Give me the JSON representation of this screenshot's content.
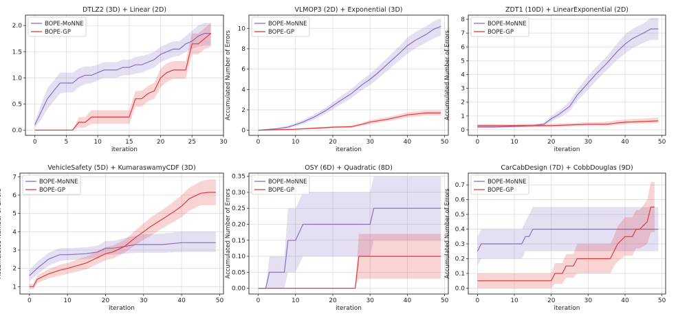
{
  "chart_data": [
    {
      "type": "line",
      "title": "DTLZ2 (3D) + Linear (2D)",
      "xlabel": "iteration",
      "ylabel": "",
      "xlim": [
        -1.5,
        30
      ],
      "ylim": [
        -0.1,
        2.2
      ],
      "xticks": [
        0,
        5,
        10,
        15,
        20,
        25,
        30
      ],
      "yticks": [
        0.0,
        0.5,
        1.0,
        1.5,
        2.0
      ],
      "ytick_labels": [
        "0.0",
        "0.5",
        "1.0",
        "1.5",
        "2.0"
      ],
      "grid": true,
      "legend": "top-left",
      "series": [
        {
          "name": "BOPE-MoNNE",
          "color": "#8a6cc4",
          "x": [
            0,
            1,
            2,
            3,
            4,
            5,
            6,
            7,
            8,
            9,
            10,
            11,
            12,
            13,
            14,
            15,
            16,
            17,
            18,
            19,
            20,
            21,
            22,
            23,
            24,
            25,
            26,
            27,
            28
          ],
          "y": [
            0.1,
            0.35,
            0.6,
            0.75,
            0.9,
            0.9,
            0.9,
            1.0,
            1.05,
            1.05,
            1.1,
            1.15,
            1.15,
            1.15,
            1.2,
            1.2,
            1.25,
            1.25,
            1.3,
            1.35,
            1.45,
            1.5,
            1.55,
            1.55,
            1.65,
            1.7,
            1.8,
            1.85,
            1.85
          ],
          "lower": [
            0.05,
            0.2,
            0.4,
            0.55,
            0.7,
            0.72,
            0.72,
            0.82,
            0.88,
            0.9,
            0.95,
            1.0,
            1.0,
            1.0,
            1.05,
            1.05,
            1.08,
            1.1,
            1.15,
            1.2,
            1.3,
            1.35,
            1.4,
            1.42,
            1.5,
            1.55,
            1.6,
            1.62,
            1.62
          ],
          "upper": [
            0.15,
            0.5,
            0.8,
            0.95,
            1.1,
            1.1,
            1.1,
            1.18,
            1.22,
            1.22,
            1.25,
            1.3,
            1.3,
            1.3,
            1.35,
            1.35,
            1.4,
            1.42,
            1.45,
            1.5,
            1.6,
            1.65,
            1.7,
            1.7,
            1.8,
            1.9,
            2.0,
            2.05,
            2.05
          ]
        },
        {
          "name": "BOPE-GP",
          "color": "#dd3b3b",
          "x": [
            0,
            1,
            2,
            3,
            4,
            5,
            6,
            7,
            8,
            9,
            10,
            11,
            12,
            13,
            14,
            15,
            16,
            17,
            18,
            19,
            20,
            21,
            22,
            23,
            24,
            25,
            26,
            27,
            28
          ],
          "y": [
            0.0,
            0.0,
            0.0,
            0.0,
            0.0,
            0.0,
            0.0,
            0.15,
            0.15,
            0.25,
            0.25,
            0.25,
            0.25,
            0.25,
            0.25,
            0.25,
            0.6,
            0.6,
            0.7,
            0.75,
            1.0,
            1.1,
            1.15,
            1.15,
            1.15,
            1.65,
            1.65,
            1.75,
            1.85
          ],
          "lower": [
            0.0,
            0.0,
            0.0,
            0.0,
            0.0,
            0.0,
            0.0,
            0.05,
            0.05,
            0.12,
            0.12,
            0.12,
            0.12,
            0.12,
            0.12,
            0.12,
            0.45,
            0.45,
            0.55,
            0.6,
            0.82,
            0.92,
            0.98,
            0.98,
            0.98,
            1.45,
            1.45,
            1.55,
            1.6
          ],
          "upper": [
            0.0,
            0.0,
            0.0,
            0.0,
            0.0,
            0.0,
            0.0,
            0.25,
            0.25,
            0.38,
            0.38,
            0.38,
            0.38,
            0.38,
            0.38,
            0.38,
            0.75,
            0.75,
            0.85,
            0.9,
            1.18,
            1.28,
            1.32,
            1.32,
            1.32,
            1.85,
            1.85,
            1.95,
            2.05
          ]
        }
      ]
    },
    {
      "type": "line",
      "title": "VLMOP3 (2D) + Exponential (3D)",
      "xlabel": "iteration",
      "ylabel": "Accumulated Number of Errors",
      "xlim": [
        -2.5,
        51
      ],
      "ylim": [
        -0.5,
        11.3
      ],
      "xticks": [
        0,
        10,
        20,
        30,
        40,
        50
      ],
      "yticks": [
        0,
        2,
        4,
        6,
        8,
        10
      ],
      "ytick_labels": [
        "0",
        "2",
        "4",
        "6",
        "8",
        "10"
      ],
      "grid": true,
      "legend": "top-left",
      "series": [
        {
          "name": "BOPE-MoNNE",
          "color": "#8a6cc4",
          "x": [
            0,
            5,
            8,
            10,
            12,
            15,
            18,
            20,
            22,
            25,
            28,
            30,
            32,
            35,
            38,
            40,
            42,
            45,
            47,
            49
          ],
          "y": [
            0.0,
            0.15,
            0.3,
            0.55,
            0.8,
            1.3,
            1.9,
            2.4,
            2.9,
            3.6,
            4.5,
            5.0,
            5.6,
            6.6,
            7.6,
            8.3,
            8.8,
            9.4,
            9.9,
            10.2
          ],
          "lower": [
            0.0,
            0.08,
            0.18,
            0.4,
            0.6,
            1.05,
            1.6,
            2.05,
            2.5,
            3.15,
            4.0,
            4.45,
            5.0,
            5.95,
            6.9,
            7.5,
            8.0,
            8.6,
            9.0,
            9.3
          ],
          "upper": [
            0.0,
            0.22,
            0.45,
            0.7,
            1.0,
            1.55,
            2.2,
            2.75,
            3.3,
            4.05,
            5.0,
            5.55,
            6.2,
            7.25,
            8.3,
            9.1,
            9.6,
            10.2,
            10.7,
            11.0
          ]
        },
        {
          "name": "BOPE-GP",
          "color": "#dd3b3b",
          "x": [
            0,
            5,
            10,
            15,
            18,
            20,
            25,
            28,
            30,
            35,
            40,
            45,
            49
          ],
          "y": [
            0.0,
            0.05,
            0.1,
            0.2,
            0.25,
            0.3,
            0.35,
            0.6,
            0.8,
            1.1,
            1.5,
            1.7,
            1.7
          ],
          "lower": [
            0.0,
            0.0,
            0.05,
            0.12,
            0.15,
            0.2,
            0.25,
            0.45,
            0.6,
            0.9,
            1.25,
            1.45,
            1.45
          ],
          "upper": [
            0.0,
            0.1,
            0.15,
            0.28,
            0.35,
            0.4,
            0.45,
            0.75,
            1.0,
            1.3,
            1.75,
            1.95,
            1.95
          ]
        }
      ]
    },
    {
      "type": "line",
      "title": "ZDT1 (10D) + LinearExponential (2D)",
      "xlabel": "iteration",
      "ylabel": "Accumulated Number of Errors",
      "xlim": [
        -2.5,
        51
      ],
      "ylim": [
        -0.4,
        8.3
      ],
      "xticks": [
        0,
        10,
        20,
        30,
        40,
        50
      ],
      "yticks": [
        0,
        1,
        2,
        3,
        4,
        5,
        6,
        7,
        8
      ],
      "ytick_labels": [
        "0",
        "1",
        "2",
        "3",
        "4",
        "5",
        "6",
        "7",
        "8"
      ],
      "grid": true,
      "legend": "top-left",
      "series": [
        {
          "name": "BOPE-MoNNE",
          "color": "#8a6cc4",
          "x": [
            0,
            5,
            10,
            15,
            18,
            20,
            22,
            25,
            27,
            30,
            32,
            35,
            38,
            40,
            42,
            45,
            47,
            49
          ],
          "y": [
            0.2,
            0.2,
            0.25,
            0.3,
            0.4,
            0.8,
            1.1,
            1.7,
            2.5,
            3.4,
            4.0,
            4.8,
            5.7,
            6.2,
            6.6,
            7.0,
            7.3,
            7.3
          ],
          "lower": [
            0.12,
            0.12,
            0.15,
            0.2,
            0.28,
            0.6,
            0.85,
            1.35,
            2.1,
            2.9,
            3.5,
            4.3,
            5.1,
            5.5,
            5.9,
            6.3,
            6.5,
            6.5
          ],
          "upper": [
            0.28,
            0.28,
            0.35,
            0.4,
            0.52,
            1.0,
            1.35,
            2.05,
            2.9,
            3.9,
            4.5,
            5.3,
            6.3,
            6.9,
            7.3,
            7.7,
            8.1,
            8.1
          ]
        },
        {
          "name": "BOPE-GP",
          "color": "#dd3b3b",
          "x": [
            0,
            5,
            10,
            15,
            20,
            25,
            30,
            35,
            38,
            40,
            45,
            49
          ],
          "y": [
            0.3,
            0.3,
            0.3,
            0.3,
            0.3,
            0.35,
            0.4,
            0.4,
            0.5,
            0.55,
            0.6,
            0.65
          ],
          "lower": [
            0.2,
            0.2,
            0.2,
            0.2,
            0.2,
            0.25,
            0.28,
            0.28,
            0.35,
            0.4,
            0.45,
            0.5
          ],
          "upper": [
            0.4,
            0.4,
            0.4,
            0.4,
            0.42,
            0.48,
            0.55,
            0.58,
            0.7,
            0.75,
            0.82,
            0.88
          ]
        }
      ]
    },
    {
      "type": "line",
      "title": "VehicleSafety (5D) + KumaraswamyCDF (3D)",
      "xlabel": "iteration",
      "ylabel": "Accumulated Number of Errors",
      "xlim": [
        -2.5,
        51
      ],
      "ylim": [
        0.6,
        7.2
      ],
      "xticks": [
        0,
        10,
        20,
        30,
        40,
        50
      ],
      "yticks": [
        1,
        2,
        3,
        4,
        5,
        6,
        7
      ],
      "ytick_labels": [
        "1",
        "2",
        "3",
        "4",
        "5",
        "6",
        "7"
      ],
      "grid": true,
      "legend": "top-left",
      "series": [
        {
          "name": "BOPE-MoNNE",
          "color": "#8a6cc4",
          "x": [
            0,
            2,
            5,
            8,
            10,
            15,
            18,
            20,
            22,
            25,
            28,
            30,
            35,
            40,
            45,
            49
          ],
          "y": [
            1.6,
            2.0,
            2.5,
            2.75,
            2.75,
            2.8,
            2.9,
            3.1,
            3.1,
            3.2,
            3.3,
            3.3,
            3.3,
            3.4,
            3.4,
            3.4
          ],
          "lower": [
            1.3,
            1.65,
            2.15,
            2.4,
            2.45,
            2.5,
            2.6,
            2.75,
            2.75,
            2.8,
            2.85,
            2.85,
            2.85,
            2.9,
            2.9,
            2.9
          ],
          "upper": [
            1.9,
            2.35,
            2.85,
            3.1,
            3.1,
            3.15,
            3.25,
            3.5,
            3.5,
            3.65,
            3.8,
            3.85,
            3.9,
            4.0,
            4.0,
            4.0
          ]
        },
        {
          "name": "BOPE-GP",
          "color": "#dd3b3b",
          "x": [
            0,
            1,
            2,
            5,
            8,
            10,
            15,
            18,
            20,
            22,
            25,
            28,
            30,
            32,
            35,
            38,
            40,
            42,
            45,
            47,
            49
          ],
          "y": [
            1.0,
            1.0,
            1.4,
            1.7,
            1.9,
            2.0,
            2.3,
            2.6,
            2.8,
            2.9,
            3.2,
            3.7,
            4.0,
            4.3,
            4.7,
            5.1,
            5.4,
            5.8,
            6.1,
            6.15,
            6.15
          ],
          "lower": [
            0.85,
            0.85,
            1.2,
            1.45,
            1.6,
            1.7,
            1.95,
            2.25,
            2.45,
            2.55,
            2.85,
            3.3,
            3.55,
            3.8,
            4.2,
            4.55,
            4.8,
            5.15,
            5.45,
            5.45,
            5.45
          ],
          "upper": [
            1.15,
            1.15,
            1.6,
            1.95,
            2.2,
            2.3,
            2.65,
            2.95,
            3.15,
            3.25,
            3.55,
            4.1,
            4.45,
            4.8,
            5.2,
            5.65,
            6.0,
            6.4,
            6.75,
            6.85,
            6.85
          ]
        }
      ]
    },
    {
      "type": "line",
      "title": "OSY (6D) + Quadratic (8D)",
      "xlabel": "iteration",
      "ylabel": "Accumulated Number of Errors",
      "xlim": [
        -2.5,
        51
      ],
      "ylim": [
        -0.018,
        0.36
      ],
      "xticks": [
        0,
        10,
        20,
        30,
        40,
        50
      ],
      "yticks": [
        0.0,
        0.05,
        0.1,
        0.15,
        0.2,
        0.25,
        0.3,
        0.35
      ],
      "ytick_labels": [
        "0.00",
        "0.05",
        "0.10",
        "0.15",
        "0.20",
        "0.25",
        "0.30",
        "0.35"
      ],
      "grid": true,
      "legend": "top-left",
      "series": [
        {
          "name": "BOPE-MoNNE",
          "color": "#8a6cc4",
          "x": [
            0,
            2,
            3,
            7,
            8,
            10,
            12,
            30,
            31,
            49
          ],
          "y": [
            0.0,
            0.0,
            0.05,
            0.05,
            0.15,
            0.15,
            0.2,
            0.2,
            0.25,
            0.25
          ],
          "lower": [
            0.0,
            0.0,
            0.0,
            0.0,
            0.05,
            0.05,
            0.1,
            0.1,
            0.15,
            0.15
          ],
          "upper": [
            0.0,
            0.0,
            0.1,
            0.1,
            0.25,
            0.25,
            0.3,
            0.3,
            0.35,
            0.35
          ]
        },
        {
          "name": "BOPE-GP",
          "color": "#dd3b3b",
          "x": [
            0,
            26,
            27,
            49
          ],
          "y": [
            0.0,
            0.0,
            0.1,
            0.1
          ],
          "lower": [
            0.0,
            0.0,
            0.03,
            0.03
          ],
          "upper": [
            0.0,
            0.0,
            0.17,
            0.17
          ]
        }
      ]
    },
    {
      "type": "line",
      "title": "CarCabDesign (7D) + CobbDouglas (9D)",
      "xlabel": "iteration",
      "ylabel": "Accumulated Number of Errors",
      "xlim": [
        -2.5,
        51
      ],
      "ylim": [
        -0.04,
        0.78
      ],
      "xticks": [
        0,
        10,
        20,
        30,
        40,
        50
      ],
      "yticks": [
        0.0,
        0.1,
        0.2,
        0.3,
        0.4,
        0.5,
        0.6,
        0.7
      ],
      "ytick_labels": [
        "0.0",
        "0.1",
        "0.2",
        "0.3",
        "0.4",
        "0.5",
        "0.6",
        "0.7"
      ],
      "grid": true,
      "legend": "top-left",
      "series": [
        {
          "name": "BOPE-MoNNE",
          "color": "#8a6cc4",
          "x": [
            0,
            1,
            2,
            12,
            13,
            14,
            15,
            49
          ],
          "y": [
            0.25,
            0.3,
            0.3,
            0.3,
            0.35,
            0.35,
            0.4,
            0.4
          ],
          "lower": [
            0.15,
            0.2,
            0.2,
            0.2,
            0.25,
            0.25,
            0.25,
            0.25
          ],
          "upper": [
            0.35,
            0.4,
            0.4,
            0.4,
            0.45,
            0.5,
            0.55,
            0.55
          ]
        },
        {
          "name": "BOPE-GP",
          "color": "#dd3b3b",
          "x": [
            0,
            20,
            21,
            23,
            24,
            26,
            27,
            36,
            37,
            38,
            40,
            42,
            43,
            44,
            46,
            47,
            48
          ],
          "y": [
            0.05,
            0.05,
            0.1,
            0.1,
            0.15,
            0.15,
            0.2,
            0.2,
            0.25,
            0.3,
            0.35,
            0.35,
            0.4,
            0.4,
            0.45,
            0.55,
            0.55
          ],
          "lower": [
            0.0,
            0.0,
            0.03,
            0.03,
            0.07,
            0.07,
            0.1,
            0.1,
            0.15,
            0.18,
            0.22,
            0.22,
            0.27,
            0.27,
            0.3,
            0.38,
            0.38
          ],
          "upper": [
            0.1,
            0.1,
            0.17,
            0.17,
            0.23,
            0.23,
            0.3,
            0.3,
            0.35,
            0.42,
            0.48,
            0.48,
            0.53,
            0.53,
            0.6,
            0.72,
            0.72
          ]
        }
      ]
    }
  ]
}
